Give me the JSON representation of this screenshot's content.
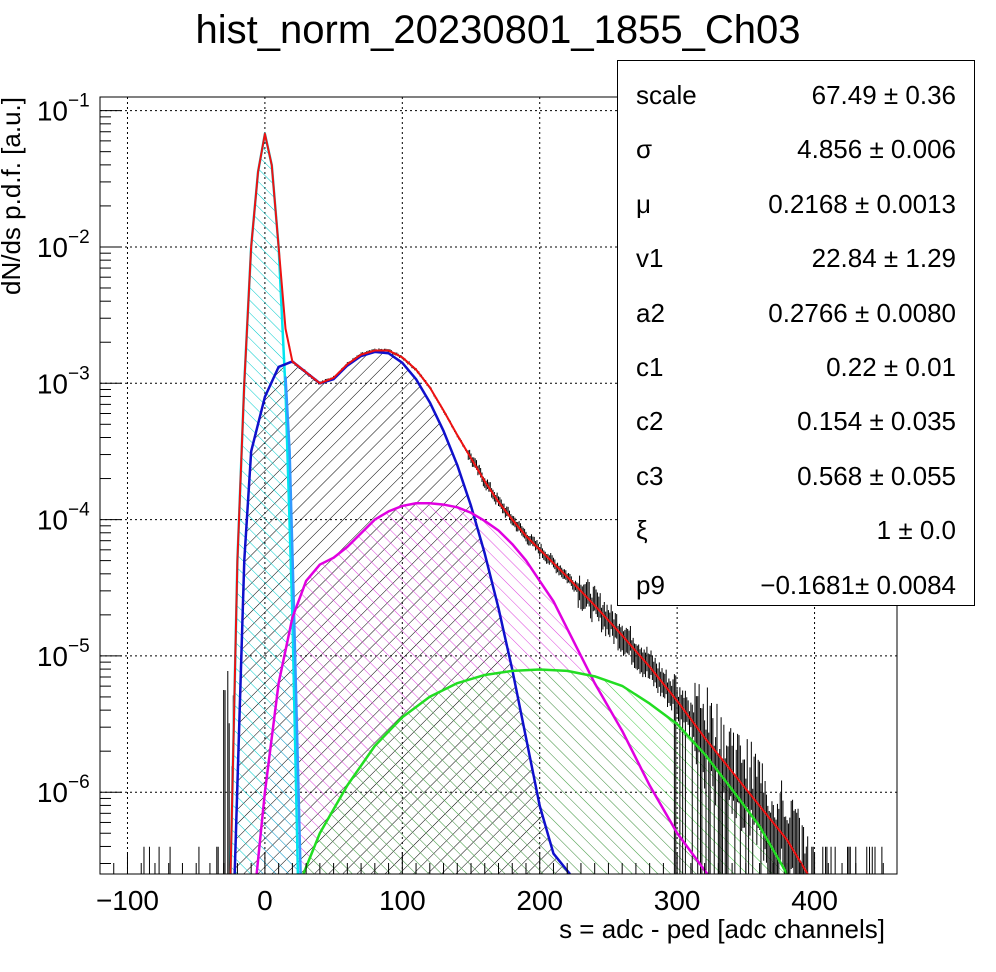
{
  "chart_data": {
    "type": "line",
    "title": "hist_norm_20230801_1855_Ch03",
    "xlabel": "s = adc - ped [adc channels]",
    "ylabel": "dN/ds p.d.f. [a.u.]",
    "xlim": [
      -120,
      460
    ],
    "ylim_log10": [
      -6.6,
      -0.9
    ],
    "yscale": "log",
    "grid": true,
    "xticks": [
      -100,
      0,
      100,
      200,
      300,
      400
    ],
    "xtick_labels": [
      "−100",
      "0",
      "100",
      "200",
      "300",
      "400"
    ],
    "yticks": [
      -6,
      -5,
      -4,
      -3,
      -2,
      -1
    ],
    "ytick_labels": [
      "10",
      "10",
      "10",
      "10",
      "10",
      "10"
    ],
    "ytick_exponents": [
      "−6",
      "−5",
      "−4",
      "−3",
      "−2",
      "−1"
    ],
    "series": [
      {
        "color": "#00e5ee",
        "points": [
          [
            -25,
            -6.6
          ],
          [
            -20,
            -4.3
          ],
          [
            -15,
            -3.0
          ],
          [
            -10,
            -2.0
          ],
          [
            -5,
            -1.45
          ],
          [
            0,
            -1.17
          ],
          [
            5,
            -1.4
          ],
          [
            10,
            -2.0
          ],
          [
            15,
            -3.05
          ],
          [
            20,
            -4.7
          ],
          [
            24,
            -6.6
          ]
        ]
      },
      {
        "color": "#3399ff",
        "points": [
          [
            15,
            -2.95
          ],
          [
            18,
            -3.5
          ],
          [
            21,
            -4.6
          ],
          [
            24,
            -5.8
          ],
          [
            26,
            -6.6
          ]
        ]
      },
      {
        "color": "#1010cc",
        "points": [
          [
            -22,
            -6.6
          ],
          [
            -15,
            -4.3
          ],
          [
            -10,
            -3.5
          ],
          [
            0,
            -3.1
          ],
          [
            10,
            -2.88
          ],
          [
            20,
            -2.84
          ],
          [
            30,
            -2.92
          ],
          [
            40,
            -3.0
          ],
          [
            50,
            -2.97
          ],
          [
            60,
            -2.87
          ],
          [
            70,
            -2.8
          ],
          [
            80,
            -2.77
          ],
          [
            90,
            -2.78
          ],
          [
            100,
            -2.85
          ],
          [
            110,
            -2.97
          ],
          [
            120,
            -3.14
          ],
          [
            130,
            -3.35
          ],
          [
            140,
            -3.6
          ],
          [
            150,
            -3.9
          ],
          [
            160,
            -4.25
          ],
          [
            170,
            -4.65
          ],
          [
            180,
            -5.1
          ],
          [
            190,
            -5.6
          ],
          [
            200,
            -6.1
          ],
          [
            210,
            -6.45
          ],
          [
            222,
            -6.6
          ]
        ]
      },
      {
        "color": "#e000e0",
        "points": [
          [
            -6,
            -6.6
          ],
          [
            0,
            -6.0
          ],
          [
            10,
            -5.2
          ],
          [
            20,
            -4.72
          ],
          [
            30,
            -4.45
          ],
          [
            40,
            -4.33
          ],
          [
            50,
            -4.28
          ],
          [
            60,
            -4.2
          ],
          [
            70,
            -4.1
          ],
          [
            80,
            -4.0
          ],
          [
            90,
            -3.94
          ],
          [
            100,
            -3.9
          ],
          [
            110,
            -3.88
          ],
          [
            120,
            -3.88
          ],
          [
            130,
            -3.89
          ],
          [
            140,
            -3.91
          ],
          [
            150,
            -3.95
          ],
          [
            160,
            -4.01
          ],
          [
            170,
            -4.08
          ],
          [
            180,
            -4.18
          ],
          [
            190,
            -4.3
          ],
          [
            200,
            -4.45
          ],
          [
            210,
            -4.6
          ],
          [
            220,
            -4.8
          ],
          [
            240,
            -5.2
          ],
          [
            260,
            -5.55
          ],
          [
            280,
            -5.95
          ],
          [
            300,
            -6.3
          ],
          [
            322,
            -6.6
          ]
        ]
      },
      {
        "color": "#22dd22",
        "points": [
          [
            28,
            -6.6
          ],
          [
            40,
            -6.3
          ],
          [
            60,
            -5.95
          ],
          [
            80,
            -5.66
          ],
          [
            100,
            -5.45
          ],
          [
            120,
            -5.3
          ],
          [
            140,
            -5.2
          ],
          [
            160,
            -5.14
          ],
          [
            180,
            -5.11
          ],
          [
            200,
            -5.1
          ],
          [
            220,
            -5.11
          ],
          [
            240,
            -5.15
          ],
          [
            260,
            -5.22
          ],
          [
            280,
            -5.35
          ],
          [
            300,
            -5.5
          ],
          [
            320,
            -5.72
          ],
          [
            340,
            -5.98
          ],
          [
            360,
            -6.25
          ],
          [
            380,
            -6.6
          ]
        ]
      },
      {
        "color": "#ee1111",
        "points": [
          [
            -25,
            -6.6
          ],
          [
            -20,
            -4.3
          ],
          [
            -15,
            -3.0
          ],
          [
            -10,
            -2.0
          ],
          [
            -5,
            -1.45
          ],
          [
            0,
            -1.17
          ],
          [
            5,
            -1.4
          ],
          [
            10,
            -2.0
          ],
          [
            15,
            -2.6
          ],
          [
            20,
            -2.84
          ],
          [
            30,
            -2.92
          ],
          [
            40,
            -3.0
          ],
          [
            50,
            -2.96
          ],
          [
            60,
            -2.86
          ],
          [
            70,
            -2.79
          ],
          [
            80,
            -2.76
          ],
          [
            90,
            -2.76
          ],
          [
            100,
            -2.81
          ],
          [
            110,
            -2.9
          ],
          [
            120,
            -3.03
          ],
          [
            130,
            -3.2
          ],
          [
            140,
            -3.38
          ],
          [
            150,
            -3.55
          ],
          [
            160,
            -3.72
          ],
          [
            170,
            -3.87
          ],
          [
            180,
            -4.0
          ],
          [
            190,
            -4.12
          ],
          [
            200,
            -4.22
          ],
          [
            220,
            -4.42
          ],
          [
            240,
            -4.63
          ],
          [
            260,
            -4.85
          ],
          [
            280,
            -5.08
          ],
          [
            300,
            -5.33
          ],
          [
            320,
            -5.6
          ],
          [
            340,
            -5.85
          ],
          [
            360,
            -6.1
          ],
          [
            380,
            -6.35
          ],
          [
            395,
            -6.6
          ]
        ]
      }
    ]
  },
  "stats": [
    {
      "name": "scale",
      "value": "67.49 ± 0.36"
    },
    {
      "name": "σ",
      "value": "4.856 ± 0.006"
    },
    {
      "name": "μ",
      "value": "0.2168 ± 0.0013"
    },
    {
      "name": "v1",
      "value": "22.84 ± 1.29"
    },
    {
      "name": "a2",
      "value": "0.2766 ± 0.0080"
    },
    {
      "name": "c1",
      "value": "0.22 ± 0.01"
    },
    {
      "name": "c2",
      "value": "0.154 ± 0.035"
    },
    {
      "name": "c3",
      "value": "0.568 ± 0.055"
    },
    {
      "name": "ξ",
      "value": "1 ± 0.0"
    },
    {
      "name": "p9",
      "value": "−0.1681± 0.0084"
    }
  ]
}
